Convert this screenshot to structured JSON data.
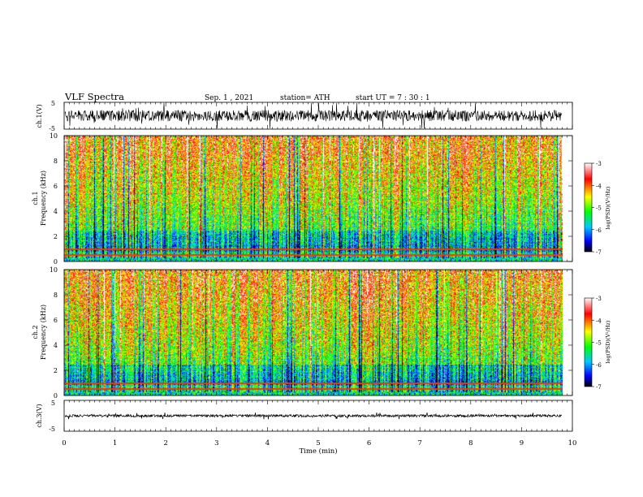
{
  "header": {
    "title": "VLF Spectra",
    "date": "Sep. 1 , 2021",
    "station": "station= ATH",
    "start": "start UT =  7 : 30 : 1"
  },
  "chart_data": [
    {
      "type": "line",
      "name": "ch1-waveform",
      "ylabel": "ch.1(V)",
      "ylim": [
        -5,
        5
      ],
      "yticks": [
        "5",
        "-5"
      ],
      "xlim": [
        0,
        10
      ]
    },
    {
      "type": "heatmap",
      "name": "ch1-spectrogram",
      "ylabel": "ch.1\nFrequency (kHz)",
      "ylim": [
        0,
        10
      ],
      "yticks": [
        "0",
        "2",
        "4",
        "6",
        "8",
        "10"
      ],
      "xlim": [
        0,
        10
      ],
      "data_end_min": 9.8,
      "colorbar": {
        "label": "log(PSD)(V²/Hz)",
        "range": [
          -7,
          -3
        ],
        "ticks": [
          "-3",
          "-4",
          "-5",
          "-6",
          "-7"
        ]
      }
    },
    {
      "type": "heatmap",
      "name": "ch2-spectrogram",
      "ylabel": "ch.2\nFrequency (kHz)",
      "ylim": [
        0,
        10
      ],
      "yticks": [
        "0",
        "2",
        "4",
        "6",
        "8",
        "10"
      ],
      "xlim": [
        0,
        10
      ],
      "data_end_min": 9.8,
      "colorbar": {
        "label": "log(PSD)(V²/Hz)",
        "range": [
          -7,
          -3
        ],
        "ticks": [
          "-3",
          "-4",
          "-5",
          "-6",
          "-7"
        ]
      }
    },
    {
      "type": "line",
      "name": "ch3-waveform",
      "ylabel": "ch.3(V)",
      "ylim": [
        -5,
        5
      ],
      "yticks": [
        "5",
        "-5"
      ],
      "xlim": [
        0,
        10
      ],
      "xlabel": "Time (min)",
      "xticks": [
        "0",
        "1",
        "2",
        "3",
        "4",
        "5",
        "6",
        "7",
        "8",
        "9",
        "10"
      ]
    }
  ],
  "colors": {
    "colormap": [
      "#000000",
      "#0000ff",
      "#00c8ff",
      "#00ff00",
      "#ffff00",
      "#ff0000",
      "#ffffff"
    ]
  }
}
